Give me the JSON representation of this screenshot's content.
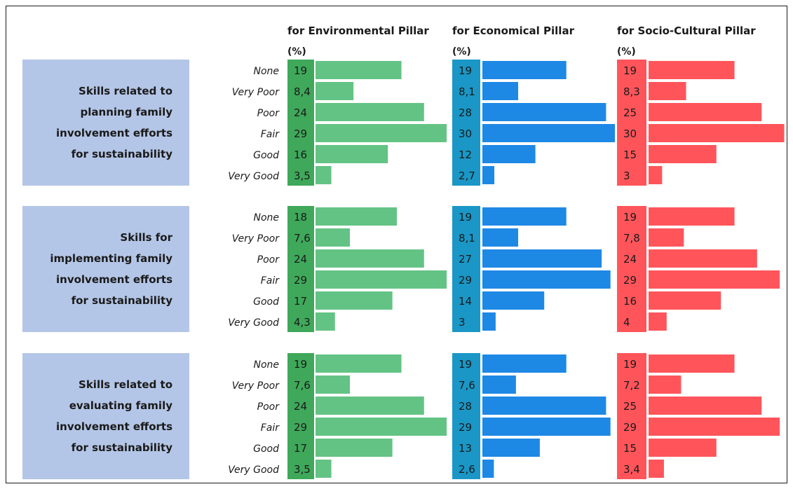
{
  "chart_data": {
    "type": "bar",
    "unit_label": "(%)",
    "categories": [
      "None",
      "Very Poor",
      "Poor",
      "Fair",
      "Good",
      "Very Good"
    ],
    "pillars": [
      {
        "title": "for Environmental Pillar",
        "color": "#63c384",
        "label_bg": "#3fa85a"
      },
      {
        "title": "for Economical Pillar",
        "color": "#1e88e5",
        "label_bg": "#1a97c6"
      },
      {
        "title": "for Socio-Cultural Pillar",
        "color": "#ff555a",
        "label_bg": "#ff555a"
      }
    ],
    "groups": [
      {
        "label": "Skills related to planning family involvement efforts for sustainability",
        "label_lines": [
          "Skills related to",
          "planning family",
          "involvement efforts",
          "for sustainability"
        ],
        "label_bg": "#b4c6e7",
        "values": [
          [
            "19",
            "8,4",
            "24",
            "29",
            "16",
            "3,5"
          ],
          [
            "19",
            "8,1",
            "28",
            "30",
            "12",
            "2,7"
          ],
          [
            "19",
            "8,3",
            "25",
            "30",
            "15",
            "3"
          ]
        ]
      },
      {
        "label": "Skills for implementing family involvement efforts for sustainability",
        "label_lines": [
          "Skills for",
          "implementing family",
          "involvement efforts",
          "for sustainability"
        ],
        "label_bg": "#b4c6e7",
        "values": [
          [
            "18",
            "7,6",
            "24",
            "29",
            "17",
            "4,3"
          ],
          [
            "19",
            "8,1",
            "27",
            "29",
            "14",
            "3"
          ],
          [
            "19",
            "7,8",
            "24",
            "29",
            "16",
            "4"
          ]
        ]
      },
      {
        "label": "Skills related to evaluating family involvement efforts for sustainability",
        "label_lines": [
          "Skills related to",
          "evaluating family",
          "involvement efforts",
          "for sustainability"
        ],
        "label_bg": "#b4c6e7",
        "values": [
          [
            "19",
            "7,6",
            "24",
            "29",
            "17",
            "3,5"
          ],
          [
            "19",
            "7,6",
            "28",
            "29",
            "13",
            "2,6"
          ],
          [
            "19",
            "7,2",
            "25",
            "29",
            "15",
            "3,4"
          ]
        ]
      }
    ]
  }
}
